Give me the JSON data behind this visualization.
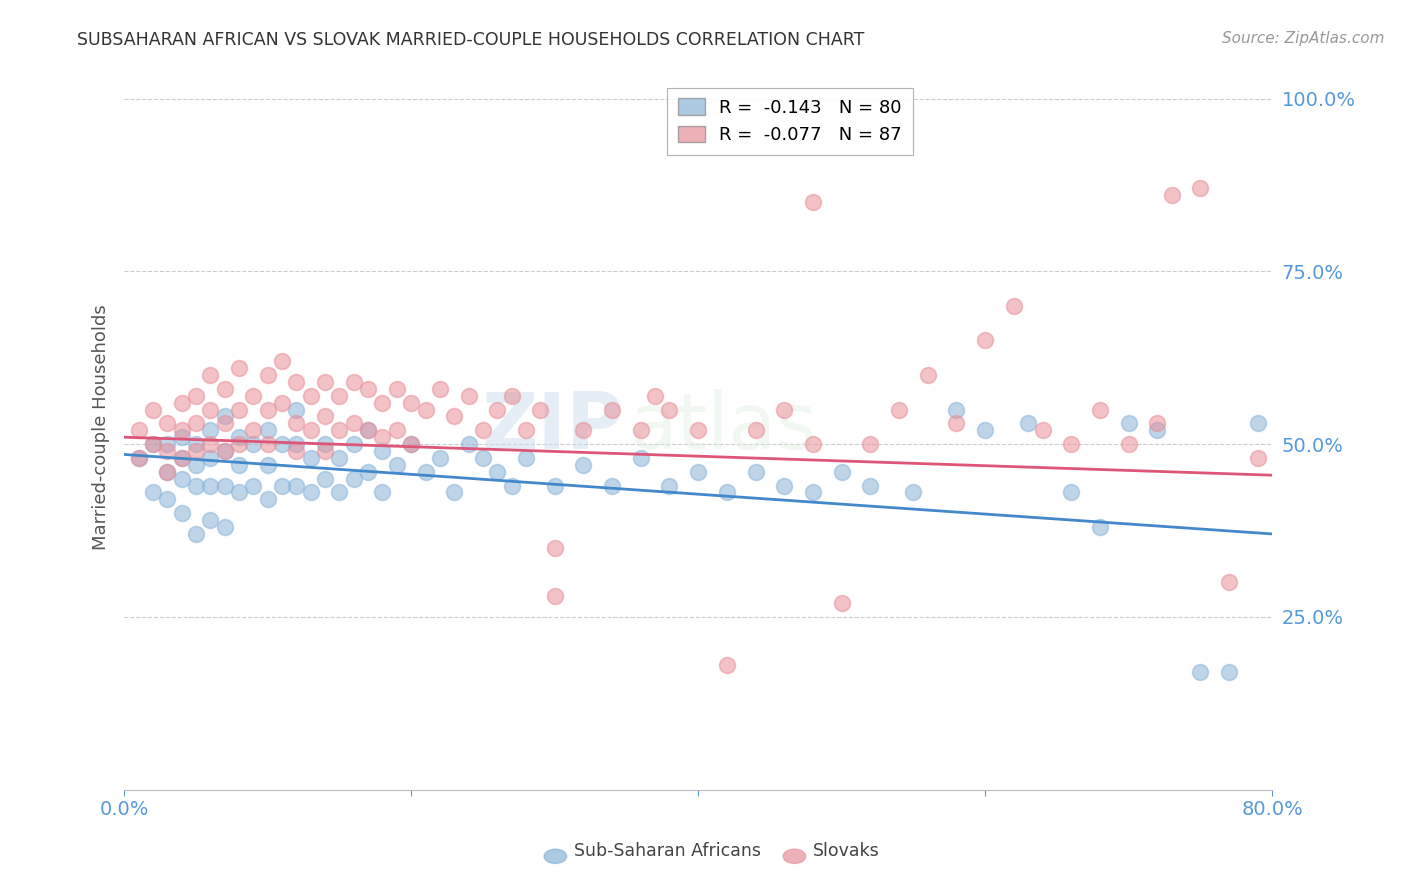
{
  "title": "SUBSAHARAN AFRICAN VS SLOVAK MARRIED-COUPLE HOUSEHOLDS CORRELATION CHART",
  "source": "Source: ZipAtlas.com",
  "ylabel": "Married-couple Households",
  "xlim": [
    0.0,
    0.8
  ],
  "ylim": [
    0.0,
    1.05
  ],
  "legend_line1": "R =  -0.143   N = 80",
  "legend_line2": "R =  -0.077   N = 87",
  "blue_color": "#8ab4d8",
  "pink_color": "#e8909a",
  "tick_color": "#5599dd",
  "grid_color": "#cccccc",
  "title_color": "#333333",
  "watermark_zip": "ZIP",
  "watermark_atlas": "atlas",
  "blue_R": -0.143,
  "blue_intercept": 0.485,
  "pink_R": -0.077,
  "pink_intercept": 0.51,
  "blue_scatter_x": [
    0.01,
    0.02,
    0.02,
    0.03,
    0.03,
    0.03,
    0.04,
    0.04,
    0.04,
    0.04,
    0.05,
    0.05,
    0.05,
    0.05,
    0.06,
    0.06,
    0.06,
    0.06,
    0.07,
    0.07,
    0.07,
    0.07,
    0.08,
    0.08,
    0.08,
    0.09,
    0.09,
    0.1,
    0.1,
    0.1,
    0.11,
    0.11,
    0.12,
    0.12,
    0.12,
    0.13,
    0.13,
    0.14,
    0.14,
    0.15,
    0.15,
    0.16,
    0.16,
    0.17,
    0.17,
    0.18,
    0.18,
    0.19,
    0.2,
    0.21,
    0.22,
    0.23,
    0.24,
    0.25,
    0.26,
    0.27,
    0.28,
    0.3,
    0.32,
    0.34,
    0.36,
    0.38,
    0.4,
    0.42,
    0.44,
    0.46,
    0.48,
    0.5,
    0.52,
    0.55,
    0.58,
    0.6,
    0.63,
    0.66,
    0.68,
    0.7,
    0.72,
    0.75,
    0.77,
    0.79
  ],
  "blue_scatter_y": [
    0.48,
    0.5,
    0.43,
    0.5,
    0.46,
    0.42,
    0.51,
    0.48,
    0.45,
    0.4,
    0.5,
    0.47,
    0.44,
    0.37,
    0.52,
    0.48,
    0.44,
    0.39,
    0.54,
    0.49,
    0.44,
    0.38,
    0.51,
    0.47,
    0.43,
    0.5,
    0.44,
    0.52,
    0.47,
    0.42,
    0.5,
    0.44,
    0.55,
    0.5,
    0.44,
    0.48,
    0.43,
    0.5,
    0.45,
    0.48,
    0.43,
    0.5,
    0.45,
    0.52,
    0.46,
    0.49,
    0.43,
    0.47,
    0.5,
    0.46,
    0.48,
    0.43,
    0.5,
    0.48,
    0.46,
    0.44,
    0.48,
    0.44,
    0.47,
    0.44,
    0.48,
    0.44,
    0.46,
    0.43,
    0.46,
    0.44,
    0.43,
    0.46,
    0.44,
    0.43,
    0.55,
    0.52,
    0.53,
    0.43,
    0.38,
    0.53,
    0.52,
    0.17,
    0.17,
    0.53
  ],
  "pink_scatter_x": [
    0.01,
    0.01,
    0.02,
    0.02,
    0.03,
    0.03,
    0.03,
    0.04,
    0.04,
    0.04,
    0.05,
    0.05,
    0.05,
    0.06,
    0.06,
    0.06,
    0.07,
    0.07,
    0.07,
    0.08,
    0.08,
    0.08,
    0.09,
    0.09,
    0.1,
    0.1,
    0.1,
    0.11,
    0.11,
    0.12,
    0.12,
    0.12,
    0.13,
    0.13,
    0.14,
    0.14,
    0.14,
    0.15,
    0.15,
    0.16,
    0.16,
    0.17,
    0.17,
    0.18,
    0.18,
    0.19,
    0.19,
    0.2,
    0.2,
    0.21,
    0.22,
    0.23,
    0.24,
    0.25,
    0.26,
    0.27,
    0.28,
    0.29,
    0.3,
    0.32,
    0.34,
    0.36,
    0.37,
    0.38,
    0.4,
    0.42,
    0.44,
    0.46,
    0.48,
    0.5,
    0.52,
    0.54,
    0.56,
    0.58,
    0.6,
    0.62,
    0.64,
    0.66,
    0.68,
    0.7,
    0.72,
    0.73,
    0.75,
    0.77,
    0.79,
    0.3,
    0.48
  ],
  "pink_scatter_y": [
    0.52,
    0.48,
    0.55,
    0.5,
    0.53,
    0.49,
    0.46,
    0.56,
    0.52,
    0.48,
    0.57,
    0.53,
    0.49,
    0.6,
    0.55,
    0.5,
    0.58,
    0.53,
    0.49,
    0.61,
    0.55,
    0.5,
    0.57,
    0.52,
    0.6,
    0.55,
    0.5,
    0.62,
    0.56,
    0.59,
    0.53,
    0.49,
    0.57,
    0.52,
    0.59,
    0.54,
    0.49,
    0.57,
    0.52,
    0.59,
    0.53,
    0.58,
    0.52,
    0.56,
    0.51,
    0.58,
    0.52,
    0.56,
    0.5,
    0.55,
    0.58,
    0.54,
    0.57,
    0.52,
    0.55,
    0.57,
    0.52,
    0.55,
    0.35,
    0.52,
    0.55,
    0.52,
    0.57,
    0.55,
    0.52,
    0.18,
    0.52,
    0.55,
    0.5,
    0.27,
    0.5,
    0.55,
    0.6,
    0.53,
    0.65,
    0.7,
    0.52,
    0.5,
    0.55,
    0.5,
    0.53,
    0.86,
    0.87,
    0.3,
    0.48,
    0.28,
    0.85
  ]
}
